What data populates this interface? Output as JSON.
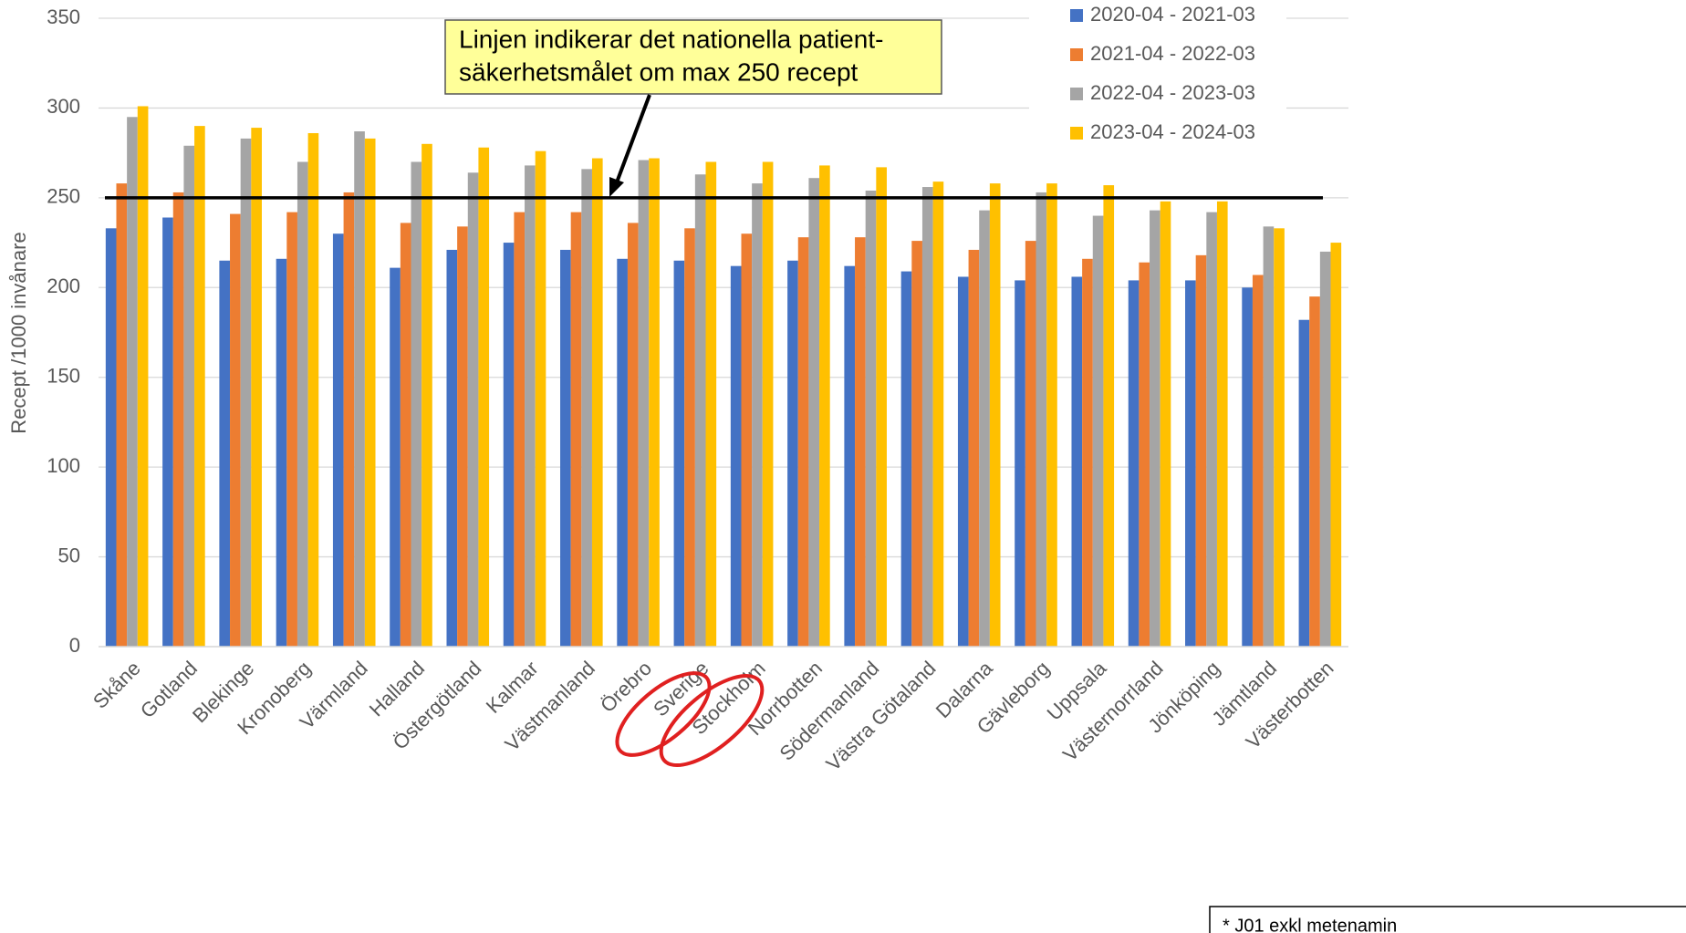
{
  "chart_data": {
    "type": "bar",
    "y_label": "Recept /1000 invånare",
    "categories": [
      "Skåne",
      "Gotland",
      "Blekinge",
      "Kronoberg",
      "Värmland",
      "Halland",
      "Östergötland",
      "Kalmar",
      "Västmanland",
      "Örebro",
      "Sverige",
      "Stockholm",
      "Norrbotten",
      "Södermanland",
      "Västra Götaland",
      "Dalarna",
      "Gävleborg",
      "Uppsala",
      "Västernorrland",
      "Jönköping",
      "Jämtland",
      "Västerbotten"
    ],
    "series": [
      {
        "name": "2020-04 - 2021-03",
        "color": "#4472c4",
        "values": [
          233,
          239,
          215,
          216,
          230,
          211,
          221,
          225,
          221,
          216,
          215,
          212,
          215,
          212,
          209,
          206,
          204,
          206,
          204,
          204,
          200,
          182
        ]
      },
      {
        "name": "2021-04 - 2022-03",
        "color": "#ed7d31",
        "values": [
          258,
          253,
          241,
          242,
          253,
          236,
          234,
          242,
          242,
          236,
          233,
          230,
          228,
          228,
          226,
          221,
          226,
          216,
          214,
          218,
          207,
          195
        ]
      },
      {
        "name": "2022-04 - 2023-03",
        "color": "#a5a5a5",
        "values": [
          295,
          279,
          283,
          270,
          287,
          270,
          264,
          268,
          266,
          271,
          263,
          258,
          261,
          254,
          256,
          243,
          253,
          240,
          243,
          242,
          234,
          220
        ]
      },
      {
        "name": "2023-04 - 2024-03",
        "color": "#ffc000",
        "values": [
          301,
          290,
          289,
          286,
          283,
          280,
          278,
          276,
          272,
          272,
          270,
          270,
          268,
          267,
          259,
          258,
          258,
          257,
          248,
          248,
          233,
          225
        ]
      }
    ],
    "ylim": [
      0,
      350
    ],
    "yticks": [
      0,
      50,
      100,
      150,
      200,
      250,
      300,
      350
    ],
    "grid": true,
    "reference_line": 250,
    "annotation": [
      "Linjen indikerar det nationella patient-",
      "säkerhetsmålet om max 250 recept"
    ],
    "highlighted_categories": [
      10,
      11
    ],
    "footnote": "* J01 exkl metenamin"
  }
}
